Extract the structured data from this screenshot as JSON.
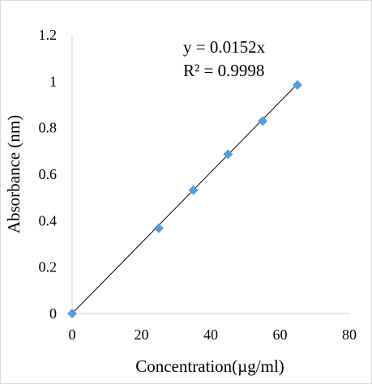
{
  "chart_data": {
    "type": "scatter",
    "title": "",
    "xlabel": "Concentration(µg/ml)",
    "ylabel": "Absorbance (nm)",
    "xlim": [
      0,
      80
    ],
    "ylim": [
      0,
      1.2
    ],
    "x_ticks": [
      "0",
      "20",
      "40",
      "60",
      "80"
    ],
    "y_ticks": [
      "0",
      "0.2",
      "0.4",
      "0.6",
      "0.8",
      "1",
      "1.2"
    ],
    "grid": false,
    "marker": "diamond",
    "marker_color": "#5b9bd5",
    "trendline_color": "#000000",
    "series": [
      {
        "x": [
          0,
          25,
          35,
          45,
          55,
          65
        ],
        "y": [
          0,
          0.367,
          0.531,
          0.686,
          0.829,
          0.984
        ]
      }
    ],
    "trendline": {
      "slope": 0.0152,
      "intercept": 0
    },
    "annotations": {
      "equation": "y = 0.0152x",
      "r_squared": "R² = 0.9998"
    }
  }
}
